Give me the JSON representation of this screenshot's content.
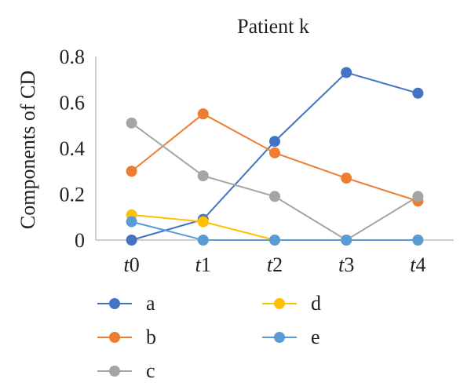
{
  "chart_data": {
    "type": "line",
    "title": "Patient k",
    "xlabel": "",
    "ylabel": "Components of CD",
    "categories": [
      {
        "letter": "t",
        "num": "0"
      },
      {
        "letter": "t",
        "num": "1"
      },
      {
        "letter": "t",
        "num": "2"
      },
      {
        "letter": "t",
        "num": "3"
      },
      {
        "letter": "t",
        "num": "4"
      }
    ],
    "ylim": [
      0,
      0.8
    ],
    "yticks": [
      "0",
      "0.2",
      "0.4",
      "0.6",
      "0.8"
    ],
    "grid": false,
    "legend_position": "bottom",
    "series": [
      {
        "name": "a",
        "color": "#4472C4",
        "values": [
          0.0,
          0.09,
          0.43,
          0.73,
          0.64
        ]
      },
      {
        "name": "b",
        "color": "#ED7D31",
        "values": [
          0.3,
          0.55,
          0.38,
          0.27,
          0.17
        ]
      },
      {
        "name": "c",
        "color": "#A5A5A5",
        "values": [
          0.51,
          0.28,
          0.19,
          0.0,
          0.19
        ]
      },
      {
        "name": "d",
        "color": "#FFC000",
        "values": [
          0.11,
          0.08,
          0.0,
          0.0,
          0.0
        ]
      },
      {
        "name": "e",
        "color": "#5B9BD5",
        "values": [
          0.08,
          0.0,
          0.0,
          0.0,
          0.0
        ]
      }
    ]
  }
}
